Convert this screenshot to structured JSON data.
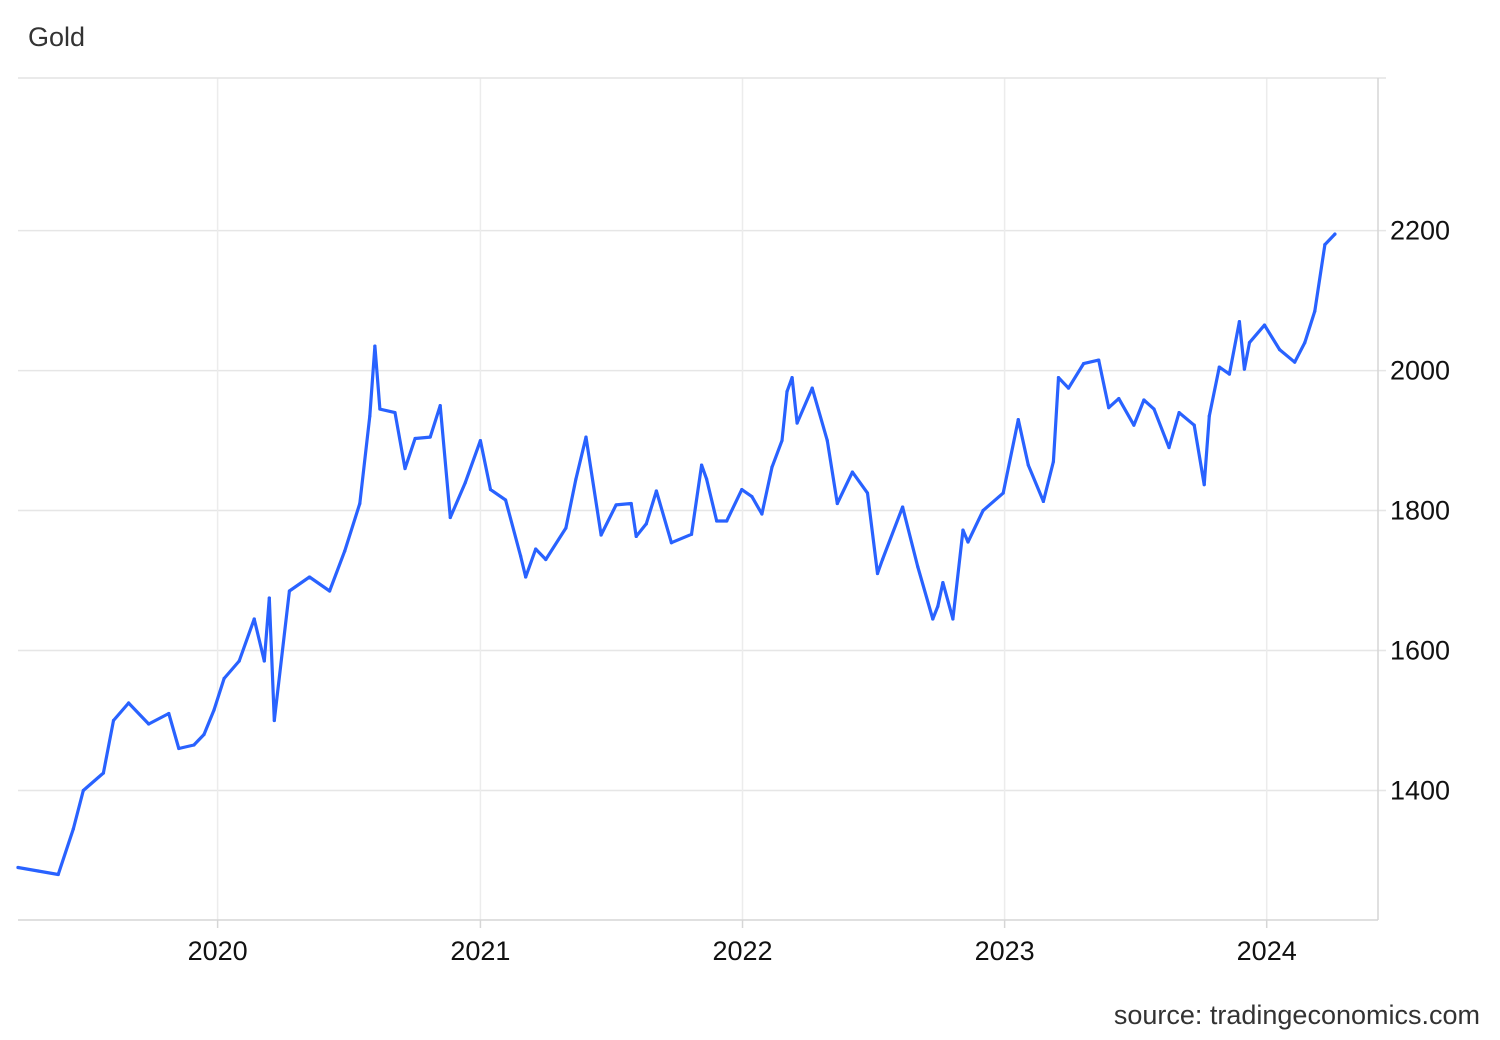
{
  "title": "Gold",
  "source": "source: tradingeconomics.com",
  "chart_data": {
    "type": "line",
    "title": "Gold",
    "xlabel": "",
    "ylabel": "",
    "grid": true,
    "legend": "none",
    "x_ticks": [
      "2020",
      "2021",
      "2022",
      "2023",
      "2024"
    ],
    "y_ticks": [
      1400,
      1600,
      1800,
      2000,
      2200
    ],
    "xlim": [
      "2019-03-29",
      "2024-06-04"
    ],
    "ylim": [
      1215,
      2418
    ],
    "color": "#2962ff",
    "series": [
      {
        "x": [
          "2019-03-29",
          "2019-04-26",
          "2019-05-24",
          "2019-06-14",
          "2019-06-28",
          "2019-07-26",
          "2019-08-09",
          "2019-08-30",
          "2019-09-27",
          "2019-10-25",
          "2019-11-08",
          "2019-11-29",
          "2019-12-13",
          "2019-12-27",
          "2020-01-10",
          "2020-01-31",
          "2020-02-21",
          "2020-03-06",
          "2020-03-13",
          "2020-03-20",
          "2020-04-10",
          "2020-05-08",
          "2020-06-05",
          "2020-06-26",
          "2020-07-17",
          "2020-07-31",
          "2020-08-07",
          "2020-08-14",
          "2020-09-04",
          "2020-09-18",
          "2020-10-02",
          "2020-10-23",
          "2020-11-06",
          "2020-11-20",
          "2020-12-11",
          "2021-01-01",
          "2021-01-15",
          "2021-02-05",
          "2021-02-26",
          "2021-03-05",
          "2021-03-19",
          "2021-04-02",
          "2021-04-30",
          "2021-05-14",
          "2021-05-28",
          "2021-06-18",
          "2021-07-09",
          "2021-07-30",
          "2021-08-06",
          "2021-08-20",
          "2021-09-03",
          "2021-09-24",
          "2021-10-22",
          "2021-11-05",
          "2021-11-12",
          "2021-11-26",
          "2021-12-10",
          "2021-12-31",
          "2022-01-14",
          "2022-01-28",
          "2022-02-11",
          "2022-02-25",
          "2022-03-04",
          "2022-03-11",
          "2022-03-18",
          "2022-04-08",
          "2022-04-29",
          "2022-05-13",
          "2022-06-03",
          "2022-06-24",
          "2022-07-08",
          "2022-07-15",
          "2022-08-12",
          "2022-09-02",
          "2022-09-23",
          "2022-09-30",
          "2022-10-07",
          "2022-10-21",
          "2022-11-04",
          "2022-11-11",
          "2022-12-02",
          "2022-12-30",
          "2023-01-20",
          "2023-02-03",
          "2023-02-24",
          "2023-03-10",
          "2023-03-17",
          "2023-03-31",
          "2023-04-21",
          "2023-05-12",
          "2023-05-26",
          "2023-06-09",
          "2023-06-30",
          "2023-07-14",
          "2023-07-28",
          "2023-08-18",
          "2023-09-01",
          "2023-09-22",
          "2023-10-06",
          "2023-10-13",
          "2023-10-27",
          "2023-11-10",
          "2023-11-24",
          "2023-12-01",
          "2023-12-08",
          "2023-12-29",
          "2024-01-19",
          "2024-02-09",
          "2024-02-23",
          "2024-03-08",
          "2024-03-22",
          "2024-04-05"
        ],
        "y": [
          1290,
          1285,
          1280,
          1345,
          1400,
          1425,
          1500,
          1525,
          1495,
          1510,
          1460,
          1465,
          1480,
          1515,
          1560,
          1585,
          1645,
          1585,
          1675,
          1500,
          1685,
          1705,
          1685,
          1742,
          1810,
          1935,
          2035,
          1945,
          1940,
          1860,
          1903,
          1905,
          1950,
          1790,
          1840,
          1900,
          1830,
          1815,
          1735,
          1705,
          1745,
          1730,
          1775,
          1845,
          1905,
          1765,
          1808,
          1810,
          1763,
          1781,
          1828,
          1754,
          1766,
          1865,
          1845,
          1785,
          1785,
          1830,
          1820,
          1795,
          1862,
          1900,
          1970,
          1990,
          1925,
          1975,
          1900,
          1810,
          1855,
          1825,
          1710,
          1730,
          1805,
          1720,
          1645,
          1663,
          1697,
          1645,
          1772,
          1755,
          1800,
          1825,
          1930,
          1865,
          1813,
          1870,
          1990,
          1975,
          2010,
          2015,
          1947,
          1960,
          1922,
          1958,
          1945,
          1890,
          1940,
          1922,
          1837,
          1935,
          2005,
          1995,
          2070,
          2002,
          2040,
          2065,
          2030,
          2012,
          2040,
          2085,
          2180,
          2195
        ]
      }
    ]
  }
}
